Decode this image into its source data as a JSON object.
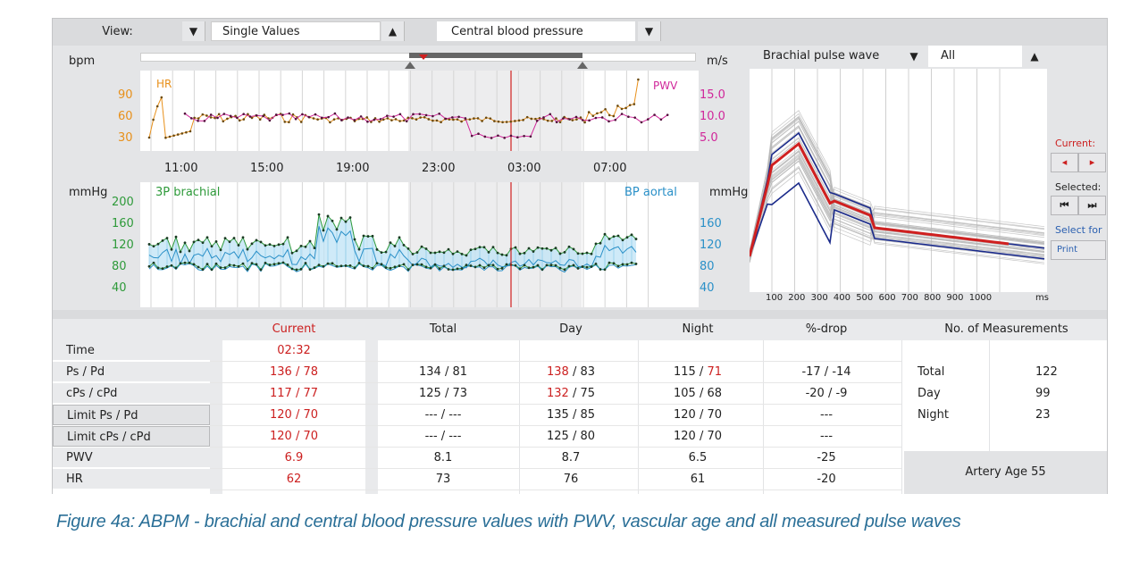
{
  "toolbar": {
    "view_label": "View:",
    "view_value": "Single Values",
    "display_value": "Central blood pressure"
  },
  "top_chart": {
    "y_unit_left": "bpm",
    "y_unit_right": "m/s",
    "hr_label": "HR",
    "pwv_label": "PWV",
    "left_ticks": [
      "90",
      "60",
      "30"
    ],
    "right_ticks": [
      "15.0",
      "10.0",
      "5.0"
    ],
    "time_ticks": [
      "11:00",
      "15:00",
      "19:00",
      "23:00",
      "03:00",
      "07:00"
    ]
  },
  "bottom_chart": {
    "y_unit_left": "mmHg",
    "y_unit_right": "mmHg",
    "brachial_label": "3P brachial",
    "aortal_label": "BP aortal",
    "left_ticks": [
      "200",
      "160",
      "120",
      "80",
      "40"
    ],
    "right_ticks": [
      "160",
      "120",
      "80",
      "40"
    ]
  },
  "pulse_wave": {
    "type_value": "Brachial pulse wave",
    "filter_value": "All",
    "x_ticks": [
      "100",
      "200",
      "300",
      "400",
      "500",
      "600",
      "700",
      "800",
      "900",
      "1000"
    ],
    "x_unit": "ms"
  },
  "side": {
    "current_label": "Current:",
    "selected_label": "Selected:",
    "select_for_label": "Select for",
    "print_label": "Print"
  },
  "table": {
    "columns": [
      "Current",
      "Total",
      "Day",
      "Night",
      "%-drop"
    ],
    "rows": [
      {
        "label": "Time",
        "current": "02:32",
        "total": "",
        "day": "",
        "night": "",
        "drop": ""
      },
      {
        "label": "Ps / Pd",
        "current": "136 / 78",
        "total": "134 / 81",
        "day_a": "138",
        "day_b": " / 83",
        "night_a": "115 / ",
        "night_b": "71",
        "drop": "-17 / -14"
      },
      {
        "label": "cPs / cPd",
        "current": "117 / 77",
        "total": "125 / 73",
        "day_a": "132",
        "day_b": " / 75",
        "night_a": "105 / 68",
        "night_b": "",
        "drop": "-20 / -9"
      },
      {
        "label": "Limit Ps / Pd",
        "current": "120 / 70",
        "total": "--- / ---",
        "day": "135 / 85",
        "night": "120 / 70",
        "drop": "---"
      },
      {
        "label": "Limit cPs / cPd",
        "current": "120 / 70",
        "total": "--- / ---",
        "day": "125 / 80",
        "night": "120 / 70",
        "drop": "---"
      },
      {
        "label": "PWV",
        "current": "6.9",
        "total": "8.1",
        "day": "8.7",
        "night": "6.5",
        "drop": "-25"
      },
      {
        "label": "HR",
        "current": "62",
        "total": "73",
        "day": "76",
        "night": "61",
        "drop": "-20"
      }
    ],
    "measurements_header": "No. of Measurements",
    "measurements": [
      {
        "label": "Total",
        "value": "122"
      },
      {
        "label": "Day",
        "value": "99"
      },
      {
        "label": "Night",
        "value": "23"
      }
    ],
    "artery_age": "Artery Age 55"
  },
  "caption": "Figure 4a: ABPM - brachial and central blood pressure values with PWV, vascular age and all measured pulse waves",
  "colors": {
    "accent_red": "#cc2020",
    "hr": "#e8901a",
    "pwv": "#d0279a",
    "brachial": "#2e9a3a",
    "aortal": "#2a90c8",
    "caption": "#2a6f97"
  }
}
